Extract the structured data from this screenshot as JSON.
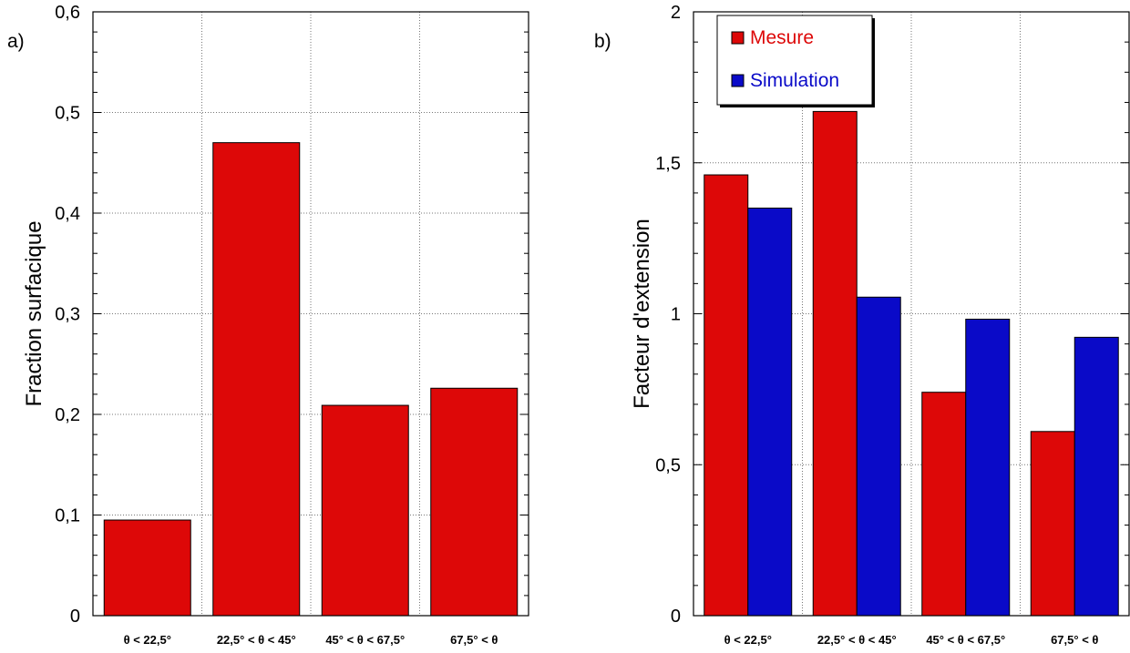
{
  "chart_data": [
    {
      "panel_label": "a)",
      "type": "bar",
      "ylabel": "Fraction surfacique",
      "xlabel": "",
      "ylim": [
        0,
        0.6
      ],
      "yticks": [
        "0",
        "0,1",
        "0,2",
        "0,3",
        "0,4",
        "0,5",
        "0,6"
      ],
      "categories": [
        "θ < 22,5°",
        "22,5° < θ < 45°",
        "45° < θ < 67,5°",
        "67,5° < θ"
      ],
      "series": [
        {
          "values": [
            0.095,
            0.47,
            0.209,
            0.226
          ],
          "color": "#dd0808"
        }
      ],
      "grid": true
    },
    {
      "panel_label": "b)",
      "type": "bar",
      "ylabel": "Facteur d'extension",
      "xlabel": "",
      "ylim": [
        0,
        2
      ],
      "yticks": [
        "0",
        "0,5",
        "1",
        "1,5",
        "2"
      ],
      "categories": [
        "θ < 22,5°",
        "22,5° < θ < 45°",
        "45° < θ < 67,5°",
        "67,5° < θ"
      ],
      "series": [
        {
          "name": "Mesure",
          "values": [
            1.46,
            1.67,
            0.74,
            0.61
          ],
          "color": "#dd0808"
        },
        {
          "name": "Simulation",
          "values": [
            1.35,
            1.055,
            0.982,
            0.922
          ],
          "color": "#0a0ac8"
        }
      ],
      "legend": "top-left",
      "grid": true
    }
  ]
}
